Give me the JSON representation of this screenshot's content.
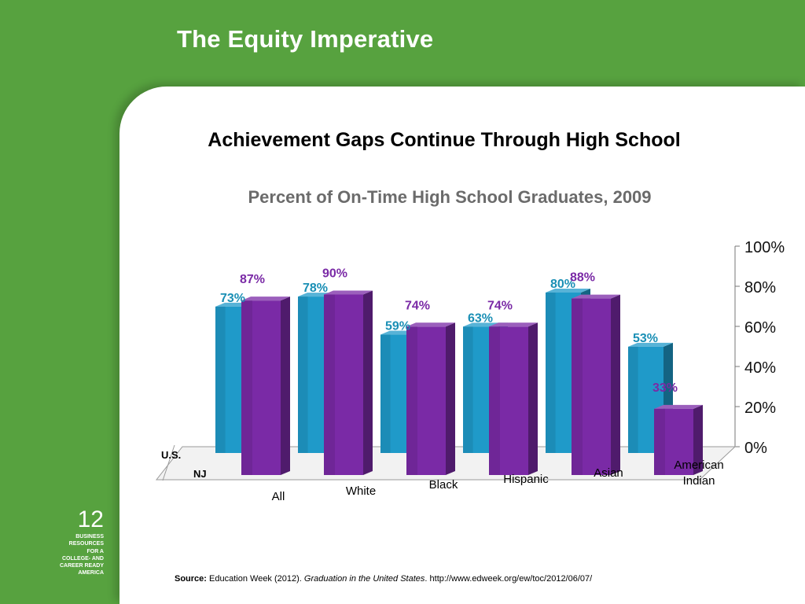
{
  "slide": {
    "title": "The Equity Imperative",
    "headline": "Achievement Gaps Continue Through High School",
    "page_number": "12",
    "org_lines": [
      "BUSINESS",
      "RESOURCES",
      "FOR A",
      "COLLEGE- AND",
      "CAREER READY",
      "AMERICA"
    ],
    "source_label": "Source:",
    "source_text": "Education Week (2012).",
    "source_publication": "Graduation in the United States",
    "source_url": "http://www.edweek.org/ew/toc/2012/06/07/"
  },
  "colors": {
    "background_green": "#57a23f",
    "us_series": "#1f9ac9",
    "nj_series": "#7a2aa6",
    "us_label": "#1a8fb5",
    "nj_label": "#7a2aa6",
    "subtitle": "#6b6b6b"
  },
  "chart_data": {
    "type": "bar",
    "title": "Percent of On-Time High School Graduates, 2009",
    "categories": [
      "All",
      "White",
      "Black",
      "Hispanic",
      "Asian",
      "American Indian"
    ],
    "series": [
      {
        "name": "U.S.",
        "values": [
          73,
          78,
          59,
          63,
          80,
          53
        ],
        "labels": [
          "73%",
          "78%",
          "59%",
          "63%",
          "80%",
          "53%"
        ]
      },
      {
        "name": "NJ",
        "values": [
          87,
          90,
          74,
          74,
          88,
          33
        ],
        "labels": [
          "87%",
          "90%",
          "74%",
          "74%",
          "88%",
          "33%"
        ]
      }
    ],
    "ylim": [
      0,
      100
    ],
    "yticks": [
      0,
      20,
      40,
      60,
      80,
      100
    ],
    "ytick_labels": [
      "0%",
      "20%",
      "40%",
      "60%",
      "80%",
      "100%"
    ],
    "xlabel": "",
    "ylabel": "",
    "style": "3d-clustered"
  }
}
